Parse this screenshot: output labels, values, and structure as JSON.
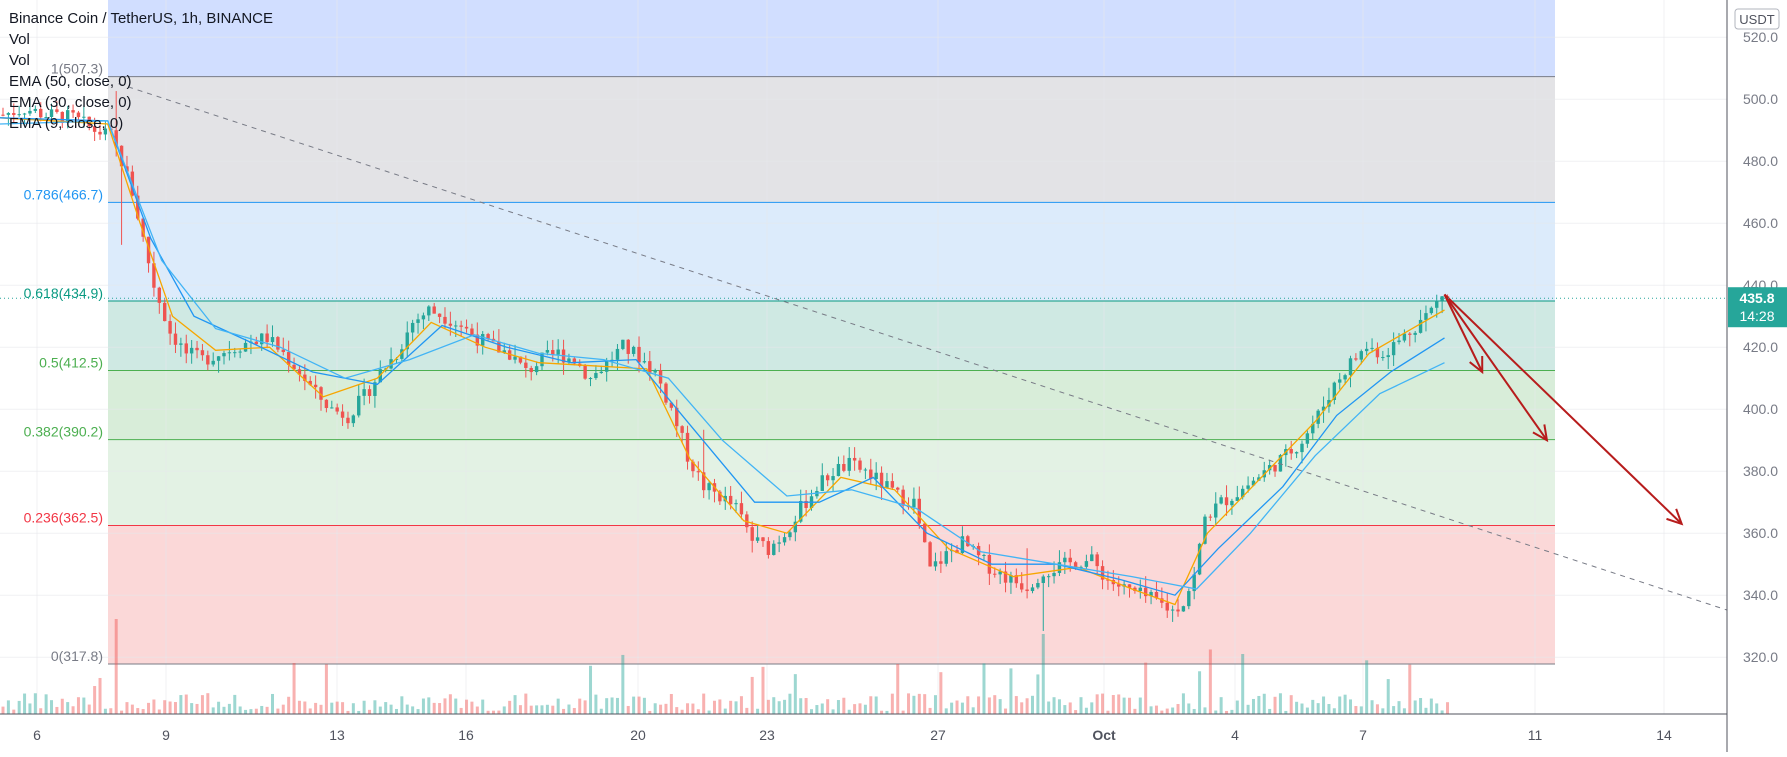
{
  "header": {
    "title": "Binance Coin / TetherUS, 1h, BINANCE",
    "indicators": [
      "Vol",
      "Vol",
      "EMA (50, close, 0)",
      "EMA (30, close, 0)",
      "EMA (9, close, 0)"
    ]
  },
  "price_axis": {
    "currency": "USDT",
    "current_price": "435.8",
    "countdown": "14:28"
  },
  "chart_data": {
    "type": "candlestick",
    "title": "Binance Coin / TetherUS, 1h, BINANCE",
    "y_ticks": [
      "320.0",
      "340.0",
      "360.0",
      "380.0",
      "400.0",
      "420.0",
      "440.0",
      "460.0",
      "480.0",
      "500.0",
      "520.0"
    ],
    "x_ticks": [
      "6",
      "9",
      "13",
      "16",
      "20",
      "23",
      "27",
      "Oct",
      "4",
      "7",
      "11",
      "14"
    ],
    "ylim": [
      306,
      528
    ],
    "fibonacci": [
      {
        "label": "1(507.3)",
        "level": 1,
        "price": 507.3
      },
      {
        "label": "0.786(466.7)",
        "level": 0.786,
        "price": 466.7
      },
      {
        "label": "0.618(434.9)",
        "level": 0.618,
        "price": 434.9
      },
      {
        "label": "0.5(412.5)",
        "level": 0.5,
        "price": 412.5
      },
      {
        "label": "0.382(390.2)",
        "level": 0.382,
        "price": 390.2
      },
      {
        "label": "0.236(362.5)",
        "level": 0.236,
        "price": 362.5
      },
      {
        "label": "0(317.8)",
        "level": 0,
        "price": 317.8
      }
    ],
    "price_path": [
      [
        0,
        495
      ],
      [
        4,
        497
      ],
      [
        8,
        495
      ],
      [
        13,
        494
      ],
      [
        17,
        490
      ],
      [
        20,
        488
      ],
      [
        22,
        480
      ],
      [
        24,
        470
      ],
      [
        26,
        455
      ],
      [
        28,
        440
      ],
      [
        31,
        425
      ],
      [
        34,
        418
      ],
      [
        37,
        416
      ],
      [
        40,
        418
      ],
      [
        43,
        420
      ],
      [
        46,
        422
      ],
      [
        49,
        423
      ],
      [
        52,
        418
      ],
      [
        55,
        412
      ],
      [
        58,
        405
      ],
      [
        61,
        400
      ],
      [
        64,
        398
      ],
      [
        67,
        404
      ],
      [
        70,
        412
      ],
      [
        73,
        418
      ],
      [
        76,
        428
      ],
      [
        79,
        432
      ],
      [
        82,
        430
      ],
      [
        85,
        427
      ],
      [
        88,
        423
      ],
      [
        91,
        420
      ],
      [
        94,
        418
      ],
      [
        97,
        412
      ],
      [
        100,
        416
      ],
      [
        103,
        418
      ],
      [
        106,
        416
      ],
      [
        109,
        410
      ],
      [
        112,
        415
      ],
      [
        115,
        420
      ],
      [
        118,
        417
      ],
      [
        121,
        412
      ],
      [
        124,
        400
      ],
      [
        127,
        385
      ],
      [
        130,
        375
      ],
      [
        133,
        372
      ],
      [
        136,
        368
      ],
      [
        139,
        358
      ],
      [
        142,
        355
      ],
      [
        145,
        360
      ],
      [
        148,
        368
      ],
      [
        151,
        375
      ],
      [
        154,
        380
      ],
      [
        157,
        382
      ],
      [
        160,
        380
      ],
      [
        163,
        376
      ],
      [
        166,
        372
      ],
      [
        169,
        370
      ],
      [
        172,
        348
      ],
      [
        175,
        353
      ],
      [
        178,
        357
      ],
      [
        181,
        352
      ],
      [
        184,
        348
      ],
      [
        187,
        345
      ],
      [
        190,
        343
      ],
      [
        193,
        348
      ],
      [
        196,
        349
      ],
      [
        199,
        351
      ],
      [
        202,
        351
      ],
      [
        205,
        345
      ],
      [
        208,
        342
      ],
      [
        211,
        340
      ],
      [
        214,
        338
      ],
      [
        217,
        335
      ],
      [
        219,
        338
      ],
      [
        221,
        346
      ],
      [
        223,
        365
      ],
      [
        226,
        370
      ],
      [
        229,
        373
      ],
      [
        232,
        377
      ],
      [
        235,
        381
      ],
      [
        238,
        385
      ],
      [
        241,
        390
      ],
      [
        244,
        398
      ],
      [
        247,
        408
      ],
      [
        250,
        415
      ],
      [
        253,
        420
      ],
      [
        256,
        418
      ],
      [
        259,
        422
      ],
      [
        262,
        427
      ],
      [
        265,
        432
      ],
      [
        267,
        437
      ],
      [
        268,
        435.8
      ]
    ],
    "emas": [
      {
        "name": "EMA (9, close, 0)",
        "color": "#f7a600",
        "values": [
          [
            0,
            494
          ],
          [
            20,
            492
          ],
          [
            26,
            460
          ],
          [
            32,
            430
          ],
          [
            40,
            419
          ],
          [
            50,
            420
          ],
          [
            60,
            404
          ],
          [
            70,
            410
          ],
          [
            80,
            428
          ],
          [
            90,
            420
          ],
          [
            100,
            415
          ],
          [
            110,
            414
          ],
          [
            120,
            413
          ],
          [
            128,
            384
          ],
          [
            138,
            364
          ],
          [
            146,
            360
          ],
          [
            156,
            378
          ],
          [
            166,
            374
          ],
          [
            176,
            355
          ],
          [
            188,
            346
          ],
          [
            200,
            349
          ],
          [
            210,
            342
          ],
          [
            218,
            337
          ],
          [
            224,
            360
          ],
          [
            234,
            378
          ],
          [
            244,
            396
          ],
          [
            254,
            418
          ],
          [
            262,
            426
          ],
          [
            268,
            432
          ]
        ]
      },
      {
        "name": "EMA (30, close, 0)",
        "color": "#2196f3",
        "values": [
          [
            0,
            494
          ],
          [
            20,
            493
          ],
          [
            28,
            455
          ],
          [
            36,
            430
          ],
          [
            46,
            422
          ],
          [
            58,
            412
          ],
          [
            70,
            408
          ],
          [
            82,
            427
          ],
          [
            94,
            420
          ],
          [
            106,
            415
          ],
          [
            118,
            416
          ],
          [
            128,
            395
          ],
          [
            140,
            370
          ],
          [
            152,
            370
          ],
          [
            162,
            378
          ],
          [
            172,
            360
          ],
          [
            184,
            350
          ],
          [
            196,
            350
          ],
          [
            208,
            345
          ],
          [
            218,
            340
          ],
          [
            226,
            355
          ],
          [
            238,
            375
          ],
          [
            248,
            398
          ],
          [
            258,
            412
          ],
          [
            268,
            423
          ]
        ]
      },
      {
        "name": "EMA (50, close, 0)",
        "color": "#42b4f5",
        "values": [
          [
            0,
            492
          ],
          [
            20,
            493
          ],
          [
            30,
            448
          ],
          [
            40,
            426
          ],
          [
            52,
            420
          ],
          [
            64,
            410
          ],
          [
            76,
            416
          ],
          [
            88,
            424
          ],
          [
            100,
            418
          ],
          [
            112,
            416
          ],
          [
            124,
            410
          ],
          [
            134,
            390
          ],
          [
            146,
            372
          ],
          [
            158,
            374
          ],
          [
            170,
            368
          ],
          [
            182,
            354
          ],
          [
            196,
            350
          ],
          [
            210,
            346
          ],
          [
            222,
            342
          ],
          [
            232,
            360
          ],
          [
            244,
            385
          ],
          [
            256,
            405
          ],
          [
            268,
            415
          ]
        ]
      }
    ],
    "trendline": {
      "from": [
        22,
        505
      ],
      "to": [
        351,
        317.8
      ],
      "style": "dashed"
    },
    "projection_arrows": [
      {
        "from": [
          268,
          437
        ],
        "to": [
          275,
          412
        ]
      },
      {
        "from": [
          268,
          437
        ],
        "to": [
          287,
          390
        ]
      },
      {
        "from": [
          268,
          437
        ],
        "to": [
          312,
          363
        ]
      }
    ],
    "colors": {
      "up": "#26a69a",
      "down": "#ef5350",
      "arrow": "#b71c1c",
      "fib_1": "#787b86",
      "fib_0786": "#2196f3",
      "fib_0618": "#089981",
      "fib_05": "#4caf50",
      "fib_0382": "#4caf50",
      "fib_0236": "#f23645",
      "fib_0": "#787b86"
    }
  }
}
